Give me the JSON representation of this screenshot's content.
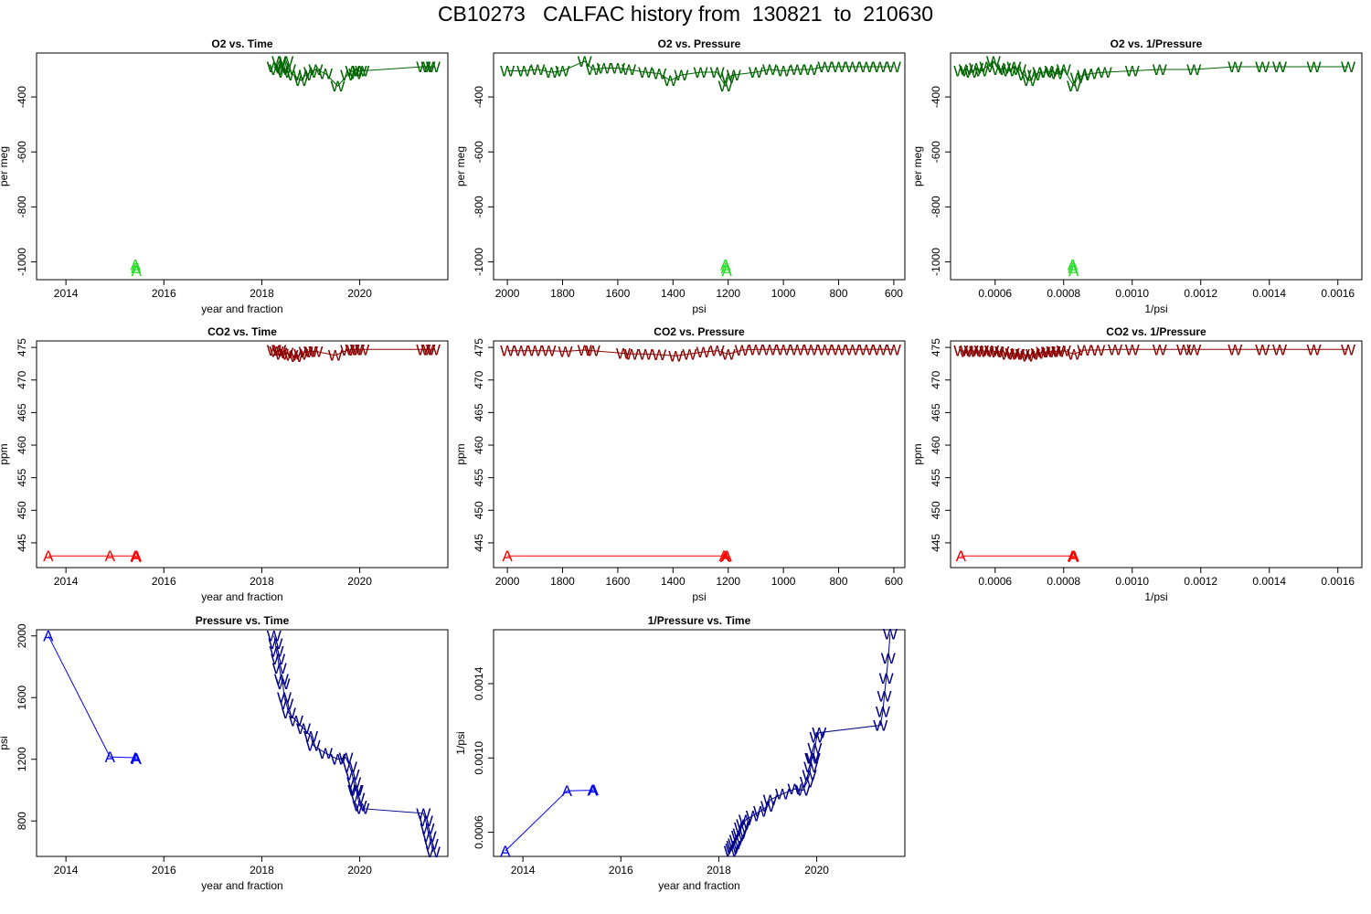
{
  "page_title": "CB10273   CALFAC history from  130821  to  210630",
  "colors": {
    "o2_A": "#22dd22",
    "o2_W": "#006400",
    "co2_A": "#ff0000",
    "co2_W": "#8b0000",
    "p_A": "#0000ff",
    "p_W": "#00008b"
  },
  "chart_data": [
    {
      "type": "line",
      "title": "O2 vs. Time",
      "xlabel": "year and fraction",
      "ylabel": "per meg",
      "xlim": [
        2013.4,
        2021.8
      ],
      "ylim": [
        -1065,
        -240
      ],
      "xticks": [
        2014,
        2016,
        2018,
        2020
      ],
      "xticklabels": [
        "2014",
        "2016",
        "2018",
        "2020"
      ],
      "yticks": [
        -400,
        -600,
        -800,
        -1000
      ],
      "yticklabels": [
        "-400",
        "-600",
        "-800",
        "-1000"
      ],
      "series": [
        {
          "name": "A",
          "color_key": "o2_A",
          "marker": "A",
          "line": false,
          "x": [
            2015.42,
            2015.43,
            2015.44
          ],
          "y": [
            -1010,
            -1022,
            -1032
          ]
        },
        {
          "name": "W",
          "color_key": "o2_W",
          "marker": "W",
          "line": true,
          "x": [
            2018.25,
            2018.3,
            2018.35,
            2018.4,
            2018.45,
            2018.5,
            2018.55,
            2018.65,
            2018.8,
            2018.9,
            2019.0,
            2019.1,
            2019.3,
            2019.55,
            2019.75,
            2019.85,
            2019.92,
            2020.0,
            2020.05,
            2021.3,
            2021.4,
            2021.5
          ],
          "y": [
            -290,
            -300,
            -270,
            -295,
            -310,
            -270,
            -300,
            -320,
            -340,
            -320,
            -310,
            -300,
            -315,
            -360,
            -320,
            -305,
            -315,
            -305,
            -305,
            -290,
            -290,
            -290
          ]
        }
      ]
    },
    {
      "type": "line",
      "title": "O2 vs. Pressure",
      "xlabel": "psi",
      "ylabel": "per meg",
      "xlim": [
        2050,
        560
      ],
      "ylim": [
        -1065,
        -240
      ],
      "xticks": [
        2000,
        1800,
        1600,
        1400,
        1200,
        1000,
        800,
        600
      ],
      "xticklabels": [
        "2000",
        "1800",
        "1600",
        "1400",
        "1200",
        "1000",
        "800",
        "600"
      ],
      "yticks": [
        -400,
        -600,
        -800,
        -1000
      ],
      "yticklabels": [
        "-400",
        "-600",
        "-800",
        "-1000"
      ],
      "series": [
        {
          "name": "A",
          "color_key": "o2_A",
          "marker": "A",
          "line": false,
          "x": [
            1210,
            1208,
            1205
          ],
          "y": [
            -1010,
            -1022,
            -1032
          ]
        },
        {
          "name": "W",
          "color_key": "o2_W",
          "marker": "W",
          "line": true,
          "x": [
            2000,
            1940,
            1890,
            1840,
            1800,
            1720,
            1690,
            1650,
            1600,
            1560,
            1500,
            1450,
            1410,
            1370,
            1300,
            1240,
            1210,
            1200,
            1180,
            1100,
            1050,
            1000,
            950,
            900,
            850,
            800,
            750,
            700,
            650,
            600
          ],
          "y": [
            -305,
            -305,
            -300,
            -310,
            -305,
            -270,
            -300,
            -295,
            -295,
            -300,
            -310,
            -315,
            -340,
            -320,
            -310,
            -310,
            -360,
            -330,
            -320,
            -310,
            -300,
            -305,
            -300,
            -300,
            -290,
            -290,
            -290,
            -290,
            -290,
            -290
          ]
        }
      ]
    },
    {
      "type": "line",
      "title": "O2 vs. 1/Pressure",
      "xlabel": "1/psi",
      "ylabel": "per meg",
      "xlim": [
        0.00047,
        0.00167
      ],
      "ylim": [
        -1065,
        -240
      ],
      "xticks": [
        0.0006,
        0.0008,
        0.001,
        0.0012,
        0.0014,
        0.0016
      ],
      "xticklabels": [
        "0.0006",
        "0.0008",
        "0.0010",
        "0.0012",
        "0.0014",
        "0.0016"
      ],
      "yticks": [
        -400,
        -600,
        -800,
        -1000
      ],
      "yticklabels": [
        "-400",
        "-600",
        "-800",
        "-1000"
      ],
      "series": [
        {
          "name": "A",
          "color_key": "o2_A",
          "marker": "A",
          "line": false,
          "x": [
            0.000826,
            0.000827,
            0.000829
          ],
          "y": [
            -1010,
            -1022,
            -1032
          ]
        },
        {
          "name": "W",
          "color_key": "o2_W",
          "marker": "W",
          "line": true,
          "x": [
            0.0005,
            0.000515,
            0.00053,
            0.000545,
            0.00056,
            0.000575,
            0.000595,
            0.00061,
            0.000625,
            0.00064,
            0.000655,
            0.00067,
            0.000685,
            0.0007,
            0.000715,
            0.00073,
            0.00075,
            0.000765,
            0.00078,
            0.0008,
            0.00083,
            0.00084,
            0.00086,
            0.00088,
            0.00092,
            0.001,
            0.00108,
            0.00118,
            0.0013,
            0.00138,
            0.00143,
            0.00153,
            0.00163
          ],
          "y": [
            -305,
            -300,
            -310,
            -295,
            -305,
            -290,
            -270,
            -300,
            -295,
            -305,
            -290,
            -300,
            -320,
            -340,
            -320,
            -310,
            -310,
            -305,
            -315,
            -300,
            -360,
            -330,
            -320,
            -315,
            -310,
            -305,
            -300,
            -300,
            -290,
            -290,
            -290,
            -290,
            -290
          ]
        }
      ]
    },
    {
      "type": "line",
      "title": "CO2 vs. Time",
      "xlabel": "year and fraction",
      "ylabel": "ppm",
      "xlim": [
        2013.4,
        2021.8
      ],
      "ylim": [
        441.2,
        476.0
      ],
      "xticks": [
        2014,
        2016,
        2018,
        2020
      ],
      "xticklabels": [
        "2014",
        "2016",
        "2018",
        "2020"
      ],
      "yticks": [
        445,
        450,
        455,
        460,
        465,
        470,
        475
      ],
      "yticklabels": [
        "445",
        "450",
        "455",
        "460",
        "465",
        "470",
        "475"
      ],
      "series": [
        {
          "name": "A",
          "color_key": "co2_A",
          "marker": "A",
          "line": true,
          "x": [
            2013.64,
            2014.9,
            2015.42,
            2015.43,
            2015.44
          ],
          "y": [
            443.0,
            443.0,
            443.0,
            442.9,
            443.0
          ]
        },
        {
          "name": "W",
          "color_key": "co2_W",
          "marker": "W",
          "line": true,
          "x": [
            2018.25,
            2018.3,
            2018.35,
            2018.4,
            2018.5,
            2018.6,
            2018.7,
            2018.8,
            2018.9,
            2019.0,
            2019.1,
            2019.5,
            2019.75,
            2019.85,
            2019.95,
            2020.05,
            2021.3,
            2021.4,
            2021.5
          ],
          "y": [
            474.6,
            474.4,
            474.6,
            474.0,
            474.2,
            473.8,
            473.6,
            474.0,
            474.3,
            474.4,
            474.4,
            473.8,
            474.6,
            474.7,
            474.7,
            474.7,
            474.7,
            474.7,
            474.7
          ]
        }
      ]
    },
    {
      "type": "line",
      "title": "CO2 vs. Pressure",
      "xlabel": "psi",
      "ylabel": "ppm",
      "xlim": [
        2050,
        560
      ],
      "ylim": [
        441.2,
        476.0
      ],
      "xticks": [
        2000,
        1800,
        1600,
        1400,
        1200,
        1000,
        800,
        600
      ],
      "xticklabels": [
        "2000",
        "1800",
        "1600",
        "1400",
        "1200",
        "1000",
        "800",
        "600"
      ],
      "yticks": [
        445,
        450,
        455,
        460,
        465,
        470,
        475
      ],
      "yticklabels": [
        "445",
        "450",
        "455",
        "460",
        "465",
        "470",
        "475"
      ],
      "series": [
        {
          "name": "A",
          "color_key": "co2_A",
          "marker": "A",
          "line": true,
          "x": [
            2000,
            1215,
            1210,
            1205
          ],
          "y": [
            443.0,
            443.0,
            442.9,
            443.0
          ]
        },
        {
          "name": "W",
          "color_key": "co2_W",
          "marker": "W",
          "line": true,
          "x": [
            2000,
            1950,
            1900,
            1850,
            1790,
            1720,
            1690,
            1580,
            1550,
            1500,
            1450,
            1390,
            1340,
            1290,
            1240,
            1200,
            1150,
            1100,
            1050,
            1000,
            950,
            900,
            850,
            800,
            750,
            700,
            650,
            600
          ],
          "y": [
            474.5,
            474.5,
            474.5,
            474.5,
            474.4,
            474.6,
            474.5,
            474.1,
            474.0,
            474.0,
            473.9,
            473.7,
            474.0,
            474.3,
            474.5,
            474.0,
            474.6,
            474.7,
            474.7,
            474.7,
            474.7,
            474.7,
            474.7,
            474.7,
            474.7,
            474.7,
            474.7,
            474.7
          ]
        }
      ]
    },
    {
      "type": "line",
      "title": "CO2 vs. 1/Pressure",
      "xlabel": "1/psi",
      "ylabel": "ppm",
      "xlim": [
        0.00047,
        0.00167
      ],
      "ylim": [
        441.2,
        476.0
      ],
      "xticks": [
        0.0006,
        0.0008,
        0.001,
        0.0012,
        0.0014,
        0.0016
      ],
      "xticklabels": [
        "0.0006",
        "0.0008",
        "0.0010",
        "0.0012",
        "0.0014",
        "0.0016"
      ],
      "yticks": [
        445,
        450,
        455,
        460,
        465,
        470,
        475
      ],
      "yticklabels": [
        "445",
        "450",
        "455",
        "460",
        "465",
        "470",
        "475"
      ],
      "series": [
        {
          "name": "A",
          "color_key": "co2_A",
          "marker": "A",
          "line": true,
          "x": [
            0.0005,
            0.000826,
            0.000828,
            0.00083
          ],
          "y": [
            443.0,
            443.0,
            442.9,
            443.0
          ]
        },
        {
          "name": "W",
          "color_key": "co2_W",
          "marker": "W",
          "line": true,
          "x": [
            0.0005,
            0.000515,
            0.00053,
            0.000545,
            0.00056,
            0.000575,
            0.00059,
            0.000605,
            0.00062,
            0.000635,
            0.00065,
            0.000665,
            0.00068,
            0.000695,
            0.00071,
            0.000725,
            0.00074,
            0.000755,
            0.00077,
            0.000785,
            0.0008,
            0.00083,
            0.00086,
            0.0009,
            0.00095,
            0.001,
            0.00108,
            0.00115,
            0.00118,
            0.0013,
            0.00138,
            0.00143,
            0.00153,
            0.00163
          ],
          "y": [
            474.5,
            474.4,
            474.5,
            474.4,
            474.5,
            474.4,
            474.5,
            474.3,
            474.4,
            474.0,
            474.1,
            474.0,
            474.0,
            473.7,
            474.0,
            474.1,
            474.3,
            474.3,
            474.4,
            474.4,
            474.5,
            474.0,
            474.6,
            474.6,
            474.7,
            474.7,
            474.7,
            474.7,
            474.7,
            474.7,
            474.7,
            474.7,
            474.7,
            474.7
          ]
        }
      ]
    },
    {
      "type": "line",
      "title": "Pressure vs. Time",
      "xlabel": "year and fraction",
      "ylabel": "psi",
      "xlim": [
        2013.4,
        2021.8
      ],
      "ylim": [
        570,
        2040
      ],
      "xticks": [
        2014,
        2016,
        2018,
        2020
      ],
      "xticklabels": [
        "2014",
        "2016",
        "2018",
        "2020"
      ],
      "yticks": [
        800,
        1200,
        1600,
        2000
      ],
      "yticklabels": [
        "800",
        "1200",
        "1600",
        "2000"
      ],
      "series": [
        {
          "name": "A",
          "color_key": "p_A",
          "marker": "A",
          "line": true,
          "x": [
            2013.64,
            2014.9,
            2015.42,
            2015.43,
            2015.44
          ],
          "y": [
            2000,
            1215,
            1210,
            1208,
            1205
          ]
        },
        {
          "name": "W",
          "color_key": "p_W",
          "marker": "W",
          "line": true,
          "x": [
            2018.25,
            2018.28,
            2018.3,
            2018.33,
            2018.36,
            2018.4,
            2018.43,
            2018.46,
            2018.5,
            2018.55,
            2018.7,
            2018.85,
            2019.0,
            2019.05,
            2019.3,
            2019.55,
            2019.72,
            2019.8,
            2019.85,
            2019.88,
            2019.9,
            2019.93,
            2019.96,
            2020.0,
            2020.05,
            2021.3,
            2021.35,
            2021.38,
            2021.42,
            2021.46,
            2021.5
          ],
          "y": [
            2000,
            1950,
            1900,
            1850,
            1790,
            1720,
            1690,
            1600,
            1560,
            1500,
            1450,
            1400,
            1350,
            1290,
            1240,
            1200,
            1210,
            1150,
            1100,
            1050,
            1000,
            1000,
            950,
            900,
            880,
            850,
            800,
            750,
            700,
            650,
            600
          ]
        }
      ]
    },
    {
      "type": "line",
      "title": "1/Pressure vs. Time",
      "xlabel": "year and fraction",
      "ylabel": "1/psi",
      "xlim": [
        2013.4,
        2021.8
      ],
      "ylim": [
        0.00047,
        0.00169
      ],
      "xticks": [
        2014,
        2016,
        2018,
        2020
      ],
      "xticklabels": [
        "2014",
        "2016",
        "2018",
        "2020"
      ],
      "yticks": [
        0.0006,
        0.001,
        0.0014
      ],
      "yticklabels": [
        "0.0006",
        "0.0010",
        "0.0014"
      ],
      "series": [
        {
          "name": "A",
          "color_key": "p_A",
          "marker": "A",
          "line": true,
          "x": [
            2013.64,
            2014.9,
            2015.42,
            2015.43,
            2015.44
          ],
          "y": [
            0.0005,
            0.000823,
            0.000826,
            0.000828,
            0.00083
          ]
        },
        {
          "name": "W",
          "color_key": "p_W",
          "marker": "W",
          "line": true,
          "x": [
            2018.25,
            2018.28,
            2018.3,
            2018.33,
            2018.36,
            2018.4,
            2018.43,
            2018.46,
            2018.5,
            2018.55,
            2018.7,
            2018.85,
            2019.0,
            2019.05,
            2019.3,
            2019.55,
            2019.72,
            2019.8,
            2019.85,
            2019.88,
            2019.9,
            2019.93,
            2019.96,
            2020.0,
            2020.05,
            2021.3,
            2021.35,
            2021.38,
            2021.42,
            2021.46,
            2021.5
          ],
          "y": [
            0.0005,
            0.000513,
            0.000526,
            0.00054,
            0.000559,
            0.000581,
            0.000592,
            0.000625,
            0.000641,
            0.000667,
            0.00069,
            0.000714,
            0.000741,
            0.000775,
            0.000806,
            0.000833,
            0.000826,
            0.00087,
            0.000909,
            0.000952,
            0.001,
            0.001,
            0.001053,
            0.001111,
            0.001136,
            0.001176,
            0.00125,
            0.001333,
            0.001429,
            0.001538,
            0.001667
          ]
        }
      ]
    }
  ]
}
